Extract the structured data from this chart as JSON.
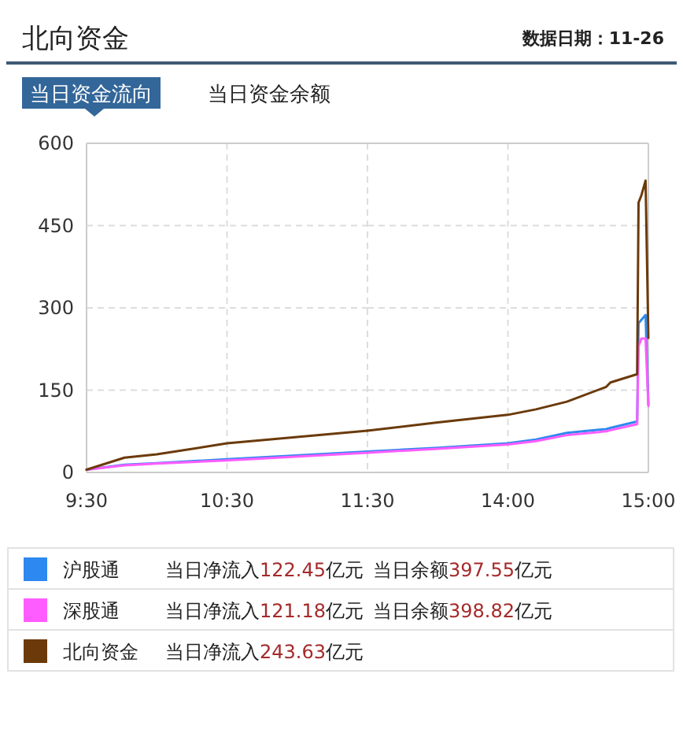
{
  "chart_data": [
    {
      "type": "line",
      "title": "北向资金",
      "subtitle": "当日资金流向",
      "annotations": [
        "数据日期：11-26",
        "当日资金余额",
        "当日净流入122.45亿元",
        "当日余额397.55亿元",
        "当日净流入121.18亿元",
        "当日余额398.82亿元",
        "当日净流入243.63亿元"
      ],
      "x": [
        9.5,
        9.77,
        10,
        10.5,
        11.5
      ],
      "series": [
        {
          "name": "沪股通",
          "color": "#2d89ef",
          "values": [
            5,
            14,
            17,
            24,
            38
          ]
        },
        {
          "name": "深股通",
          "color": "#ff5cff",
          "values": [
            5,
            13,
            16,
            22,
            36
          ]
        },
        {
          "name": "北向资金",
          "color": "#6b3a0a",
          "values": [
            5,
            27,
            33,
            53,
            76
          ]
        }
      ],
      "xlim": [
        9.5,
        11.5
      ],
      "xticks": [
        {
          "value": 9.5,
          "label": "9:30"
        },
        {
          "value": 10.5,
          "label": "10:30"
        },
        {
          "value": 11.5,
          "label": "11:30"
        }
      ],
      "ylim": [
        0,
        600
      ],
      "yticks": [
        0,
        150,
        300,
        450,
        600
      ],
      "grid": true,
      "legend": "bottom",
      "marker": "none",
      "line_style": "solid"
    },
    {
      "type": "line",
      "x": [
        13,
        13.5,
        14,
        14.2,
        14.42,
        14.7,
        14.73,
        14.92,
        14.93,
        14.95,
        14.98,
        15
      ],
      "series": [
        {
          "color": "#2d89ef",
          "values": [
            38,
            45,
            53,
            60,
            72,
            79,
            81,
            93,
            272,
            278,
            287,
            124
          ]
        },
        {
          "color": "#ff5cff",
          "values": [
            36,
            43,
            51,
            57,
            68,
            75,
            77,
            88,
            230,
            244,
            244,
            121
          ]
        },
        {
          "color": "#6b3a0a",
          "values": [
            76,
            91,
            105,
            115,
            129,
            156,
            164,
            179,
            492,
            505,
            532,
            245
          ]
        }
      ],
      "xlim": [
        13,
        15
      ],
      "xticks": [
        {
          "value": 14,
          "label": "14:00"
        },
        {
          "value": 15,
          "label": "15:00"
        }
      ],
      "ylim": [
        0,
        600
      ],
      "yticks": [
        0,
        150,
        300,
        450,
        600
      ],
      "tick_labels": "x",
      "grid": true,
      "marker": "none",
      "line_style": "solid"
    }
  ]
}
